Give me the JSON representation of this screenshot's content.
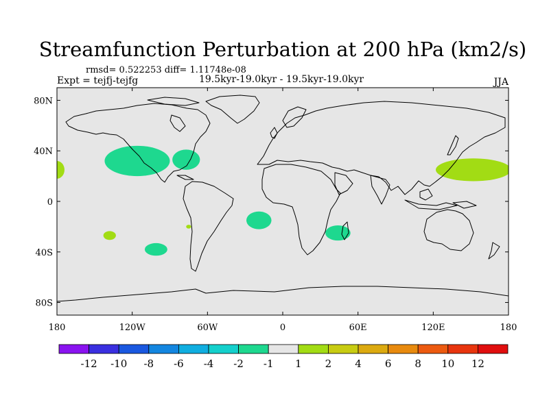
{
  "chart_data": {
    "type": "contour_map",
    "title": "Streamfunction Perturbation at 200 hPa (km2/s)",
    "stats_label": "rmsd= 0.522253 diff= 1.11748e-08",
    "period_label": "19.5kyr-19.0kyr - 19.5kyr-19.0kyr",
    "experiment_label": "Expt = tejfj-tejfg",
    "season_label": "JJA",
    "x_range": [
      -180,
      180
    ],
    "y_range": [
      -90,
      90
    ],
    "x_ticks": [
      {
        "value": -180,
        "label": "180"
      },
      {
        "value": -120,
        "label": "120W"
      },
      {
        "value": -60,
        "label": "60W"
      },
      {
        "value": 0,
        "label": "0"
      },
      {
        "value": 60,
        "label": "60E"
      },
      {
        "value": 120,
        "label": "120E"
      },
      {
        "value": 180,
        "label": "180"
      }
    ],
    "y_ticks": [
      {
        "value": 80,
        "label": "80N"
      },
      {
        "value": 40,
        "label": "40N"
      },
      {
        "value": 0,
        "label": "0"
      },
      {
        "value": -40,
        "label": "40S"
      },
      {
        "value": -80,
        "label": "80S"
      }
    ],
    "colorbar": {
      "labels": [
        "-12",
        "-10",
        "-8",
        "-6",
        "-4",
        "-2",
        "-1",
        "1",
        "2",
        "4",
        "6",
        "8",
        "10",
        "12"
      ],
      "colors": [
        "#8a13f0",
        "#3a2fe0",
        "#1a58e0",
        "#1386e0",
        "#10aee0",
        "#14d0cc",
        "#1ed88f",
        "#e6e6e6",
        "#a2dc14",
        "#c8cc12",
        "#dcaa10",
        "#e88a0e",
        "#ec5a10",
        "#e8350e",
        "#e00e0e"
      ]
    },
    "anomaly_regions": [
      {
        "name": "north-pacific-east-anomaly",
        "lon": -116,
        "lat": 32,
        "rlon": 26,
        "rlat": 12,
        "color": "#1ed88f"
      },
      {
        "name": "north-atlantic-west-anomaly",
        "lon": -77,
        "lat": 33,
        "rlon": 11,
        "rlat": 8,
        "color": "#1ed88f"
      },
      {
        "name": "central-pacific-west-anomaly",
        "lon": -180,
        "lat": 25,
        "rlon": 6,
        "rlat": 7,
        "color": "#a2dc14"
      },
      {
        "name": "west-pacific-anomaly",
        "lon": 152,
        "lat": 25,
        "rlon": 30,
        "rlat": 9,
        "color": "#a2dc14"
      },
      {
        "name": "south-atlantic-anomaly",
        "lon": -19,
        "lat": -15,
        "rlon": 10,
        "rlat": 7,
        "color": "#1ed88f"
      },
      {
        "name": "south-indian-anomaly",
        "lon": 44,
        "lat": -25,
        "rlon": 10,
        "rlat": 6,
        "color": "#1ed88f"
      },
      {
        "name": "south-pacific-central-anomaly",
        "lon": -138,
        "lat": -27,
        "rlon": 5,
        "rlat": 3.5,
        "color": "#a2dc14"
      },
      {
        "name": "south-pacific-east-anomaly",
        "lon": -101,
        "lat": -38,
        "rlon": 9,
        "rlat": 5,
        "color": "#1ed88f"
      },
      {
        "name": "chile-small-anomaly",
        "lon": -75,
        "lat": -20,
        "rlon": 2,
        "rlat": 1.5,
        "color": "#a2dc14"
      }
    ]
  }
}
